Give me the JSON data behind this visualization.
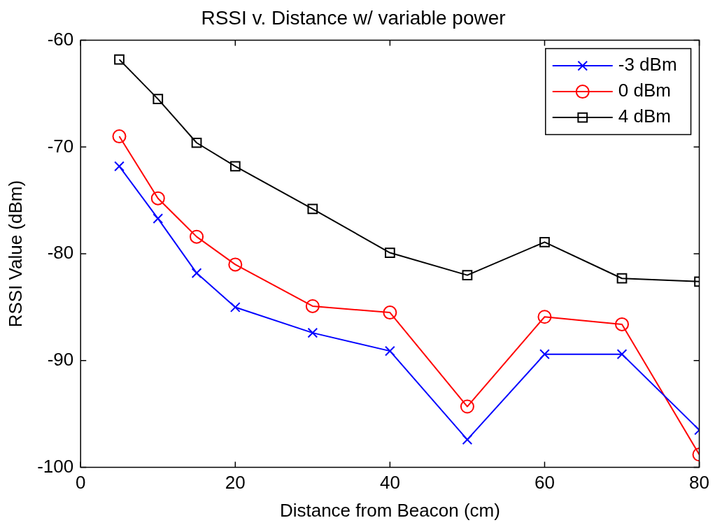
{
  "chart_data": {
    "type": "line",
    "title": "RSSI v. Distance w/ variable power",
    "xlabel": "Distance from Beacon (cm)",
    "ylabel": "RSSI Value (dBm)",
    "x": [
      5,
      10,
      15,
      20,
      30,
      40,
      50,
      60,
      70,
      80
    ],
    "series": [
      {
        "name": "-3 dBm",
        "color": "#0000ff",
        "marker": "cross",
        "values": [
          -71.8,
          -76.7,
          -81.8,
          -85.0,
          -87.4,
          -89.1,
          -97.4,
          -89.4,
          -89.4,
          -96.5
        ]
      },
      {
        "name": "0 dBm",
        "color": "#ff0000",
        "marker": "circle",
        "values": [
          -69.0,
          -74.8,
          -78.4,
          -81.0,
          -84.9,
          -85.5,
          -94.3,
          -85.9,
          -86.6,
          -98.8
        ]
      },
      {
        "name": "4 dBm",
        "color": "#000000",
        "marker": "square",
        "values": [
          -61.8,
          -65.5,
          -69.6,
          -71.8,
          -75.8,
          -79.9,
          -82.0,
          -78.9,
          -82.3,
          -82.6
        ]
      }
    ],
    "xlim": [
      0,
      80
    ],
    "xticks": [
      0,
      20,
      40,
      60,
      80
    ],
    "ylim": [
      -100,
      -60
    ],
    "yticks": [
      -100,
      -90,
      -80,
      -70,
      -60
    ],
    "grid": false,
    "legend": "top right",
    "line_style": "solid"
  }
}
